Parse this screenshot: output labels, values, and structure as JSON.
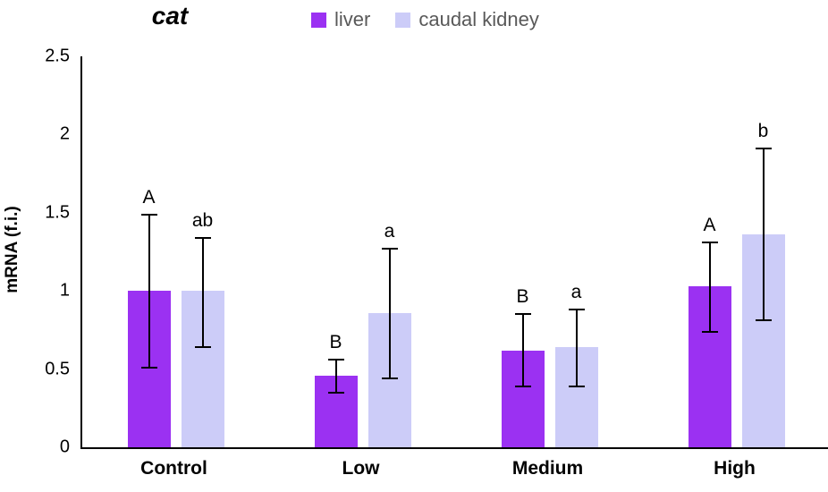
{
  "chart_data": {
    "type": "bar",
    "title": "cat",
    "ylabel": "mRNA (f.i.)",
    "ylim": [
      0,
      2.5
    ],
    "yticks": [
      "0",
      "0.5",
      "1",
      "1.5",
      "2",
      "2.5"
    ],
    "ytick_values": [
      0,
      0.5,
      1,
      1.5,
      2,
      2.5
    ],
    "categories": [
      "Control",
      "Low",
      "Medium",
      "High"
    ],
    "series": [
      {
        "name": "liver",
        "color": "#9B31F2",
        "values": [
          1.0,
          0.46,
          0.62,
          1.03
        ],
        "error_low": [
          0.51,
          0.35,
          0.39,
          0.74
        ],
        "error_high": [
          1.49,
          0.56,
          0.85,
          1.31
        ],
        "letters": [
          "A",
          "B",
          "B",
          "A"
        ]
      },
      {
        "name": "caudal kidney",
        "color": "#CCCCF8",
        "values": [
          1.0,
          0.86,
          0.64,
          1.36
        ],
        "error_low": [
          0.64,
          0.44,
          0.39,
          0.81
        ],
        "error_high": [
          1.34,
          1.27,
          0.88,
          1.91
        ],
        "letters": [
          "ab",
          "a",
          "a",
          "b"
        ]
      }
    ],
    "grid": false,
    "legend_position": "top",
    "annotation_color": "#000000",
    "legend_text_color": "#595959"
  }
}
